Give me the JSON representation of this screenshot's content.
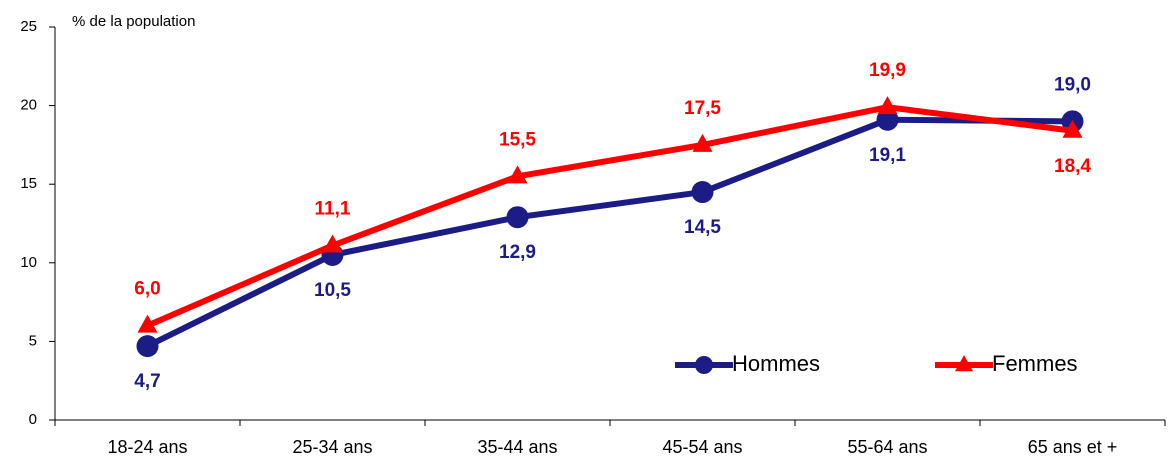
{
  "chart_data": {
    "type": "line",
    "ylabel": "% de la population",
    "categories": [
      "18-24 ans",
      "25-34 ans",
      "35-44 ans",
      "45-54 ans",
      "55-64 ans",
      "65 ans et +"
    ],
    "series": [
      {
        "name": "Hommes",
        "color": "#1c1c86",
        "marker": "circle",
        "values": [
          4.7,
          10.5,
          12.9,
          14.5,
          19.1,
          19.0
        ],
        "value_labels": [
          "4,7",
          "10,5",
          "12,9",
          "14,5",
          "19,1",
          "19,0"
        ]
      },
      {
        "name": "Femmes",
        "color": "#ff0000",
        "marker": "triangle",
        "values": [
          6.0,
          11.1,
          15.5,
          17.5,
          19.9,
          18.4
        ],
        "value_labels": [
          "6,0",
          "11,1",
          "15,5",
          "17,5",
          "19,9",
          "18,4"
        ]
      }
    ],
    "ylim": [
      0,
      25
    ],
    "yticks": [
      0,
      5,
      10,
      15,
      20,
      25
    ],
    "grid": false,
    "legend": "lower right"
  }
}
